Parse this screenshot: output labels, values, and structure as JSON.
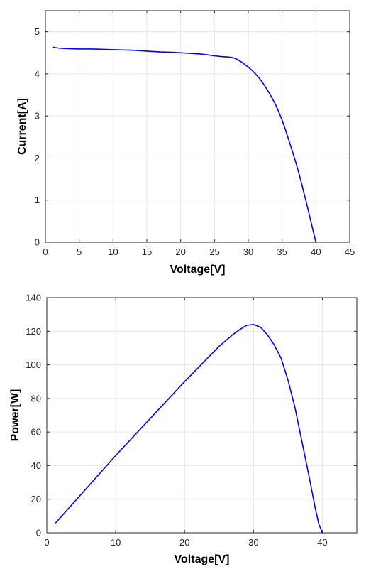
{
  "chart_data": [
    {
      "type": "line",
      "title": "",
      "xlabel": "Voltage[V]",
      "ylabel": "Current[A]",
      "xlim": [
        0,
        45
      ],
      "ylim": [
        0,
        5.5
      ],
      "xticks": [
        "0",
        "5",
        "10",
        "15",
        "20",
        "25",
        "30",
        "35",
        "40",
        "45"
      ],
      "yticks": [
        "0",
        "1",
        "2",
        "3",
        "4",
        "5"
      ],
      "grid": true,
      "legend": "none",
      "colors": {
        "series": "#0000ff",
        "grid": "#e6e6e6",
        "axis": "#262626"
      },
      "series": [
        {
          "x": [
            1.2,
            2,
            3,
            5,
            7,
            9,
            11,
            13,
            15,
            17,
            19,
            21,
            23,
            25,
            26,
            27,
            27.5,
            28,
            28.5,
            29,
            29.5,
            30,
            30.5,
            31,
            31.5,
            32,
            32.5,
            33,
            33.5,
            34,
            34.5,
            35,
            35.5,
            36,
            36.5,
            37,
            37.5,
            38,
            38.5,
            39,
            39.5,
            40
          ],
          "y": [
            4.63,
            4.61,
            4.6,
            4.59,
            4.59,
            4.58,
            4.57,
            4.56,
            4.54,
            4.52,
            4.51,
            4.49,
            4.47,
            4.43,
            4.41,
            4.4,
            4.39,
            4.37,
            4.33,
            4.28,
            4.22,
            4.16,
            4.09,
            4.01,
            3.92,
            3.82,
            3.7,
            3.57,
            3.43,
            3.28,
            3.1,
            2.9,
            2.67,
            2.42,
            2.17,
            1.91,
            1.63,
            1.32,
            1.0,
            0.67,
            0.33,
            0.0
          ]
        }
      ]
    },
    {
      "type": "line",
      "title": "",
      "xlabel": "Voltage[V]",
      "ylabel": "Power[W]",
      "xlim": [
        0,
        45
      ],
      "ylim": [
        0,
        140
      ],
      "xticks": [
        "0",
        "10",
        "20",
        "30",
        "40"
      ],
      "yticks": [
        "0",
        "20",
        "40",
        "60",
        "80",
        "100",
        "120",
        "140"
      ],
      "grid": true,
      "legend": "none",
      "colors": {
        "series": "#0000ff",
        "grid": "#e6e6e6",
        "axis": "#262626"
      },
      "series": [
        {
          "x": [
            1.3,
            5,
            10,
            15,
            20,
            25,
            27,
            28,
            29,
            30,
            31,
            32,
            33,
            34,
            35,
            36,
            37,
            38,
            39,
            39.5,
            40
          ],
          "y": [
            6,
            23,
            46,
            68,
            90,
            111,
            118,
            121,
            123.5,
            124,
            122.5,
            118,
            112,
            104,
            91,
            75,
            55,
            35,
            14,
            5,
            0
          ]
        }
      ]
    }
  ]
}
